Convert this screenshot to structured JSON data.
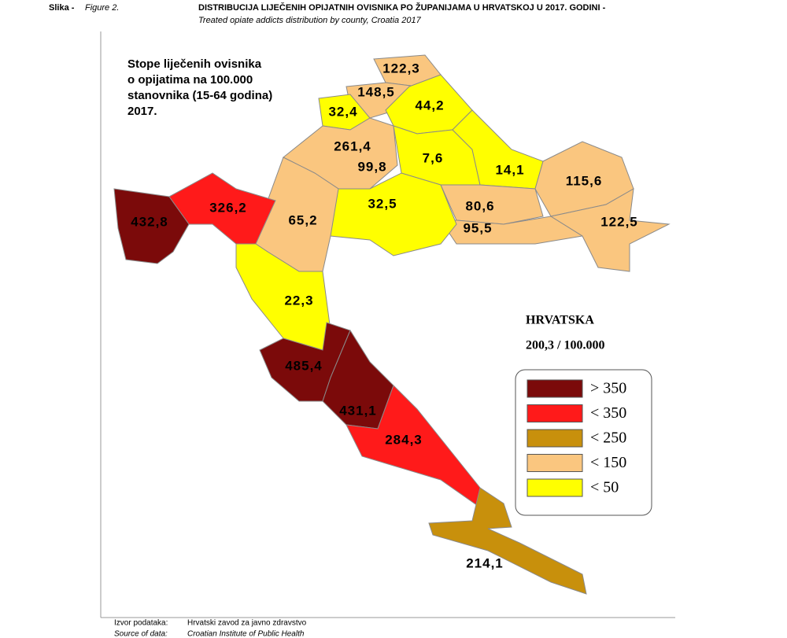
{
  "header": {
    "prefix": "Slika - ",
    "figure": "Figure 2.",
    "title": "DISTRIBUCIJA LIJEČENIH OPIJATNIH OVISNIKA PO ŽUPANIJAMA U HRVATSKOJ U 2017. GODINI -",
    "subtitle": "Treated opiate addicts distribution by county, Croatia 2017"
  },
  "map": {
    "caption": [
      "Stope liječenih ovisnika",
      "o opijatima na 100.000",
      "stanovnika (15-64 godina)",
      "2017."
    ],
    "total": {
      "name": "HRVATSKA",
      "label": "200,3 / 100.000"
    },
    "regions": [
      {
        "value": 122.3,
        "label": "122,3",
        "color": "#fac67f"
      },
      {
        "value": 148.5,
        "label": "148,5",
        "color": "#fac67f"
      },
      {
        "value": 32.4,
        "label": "32,4",
        "color": "#ffff00"
      },
      {
        "value": 44.2,
        "label": "44,2",
        "color": "#ffff00"
      },
      {
        "value": 261.4,
        "label": "261,4",
        "color": "#e8141a"
      },
      {
        "value": 99.8,
        "label": "99,8",
        "color": "#fac67f"
      },
      {
        "value": 7.6,
        "label": "7,6",
        "color": "#ffff00"
      },
      {
        "value": 14.1,
        "label": "14,1",
        "color": "#ffff00"
      },
      {
        "value": 115.6,
        "label": "115,6",
        "color": "#fac67f"
      },
      {
        "value": 80.6,
        "label": "80,6",
        "color": "#fac67f"
      },
      {
        "value": 95.5,
        "label": "95,5",
        "color": "#fac67f"
      },
      {
        "value": 122.5,
        "label": "122,5",
        "color": "#fac67f"
      },
      {
        "value": 32.5,
        "label": "32,5",
        "color": "#ffff00"
      },
      {
        "value": 65.2,
        "label": "65,2",
        "color": "#fac67f"
      },
      {
        "value": 326.2,
        "label": "326,2",
        "color": "#ff1a1a"
      },
      {
        "value": 432.8,
        "label": "432,8",
        "color": "#7b0a0a"
      },
      {
        "value": 22.3,
        "label": "22,3",
        "color": "#ffff00"
      },
      {
        "value": 485.4,
        "label": "485,4",
        "color": "#7b0a0a"
      },
      {
        "value": 431.1,
        "label": "431,1",
        "color": "#7b0a0a"
      },
      {
        "value": 284.3,
        "label": "284,3",
        "color": "#ff1a1a"
      },
      {
        "value": 214.1,
        "label": "214,1",
        "color": "#c8900c"
      }
    ],
    "legend": [
      {
        "label": "> 350",
        "color": "#7b0a0a"
      },
      {
        "label": "< 350",
        "color": "#ff1a1a"
      },
      {
        "label": "< 250",
        "color": "#c8900c"
      },
      {
        "label": "< 150",
        "color": "#fac67f"
      },
      {
        "label": "<  50",
        "color": "#ffff00"
      }
    ]
  },
  "source": {
    "label_hr": "Izvor podataka:",
    "text_hr": "Hrvatski zavod za javno zdravstvo",
    "label_en": "Source of data:",
    "text_en": "Croatian Institute of Public Health"
  }
}
